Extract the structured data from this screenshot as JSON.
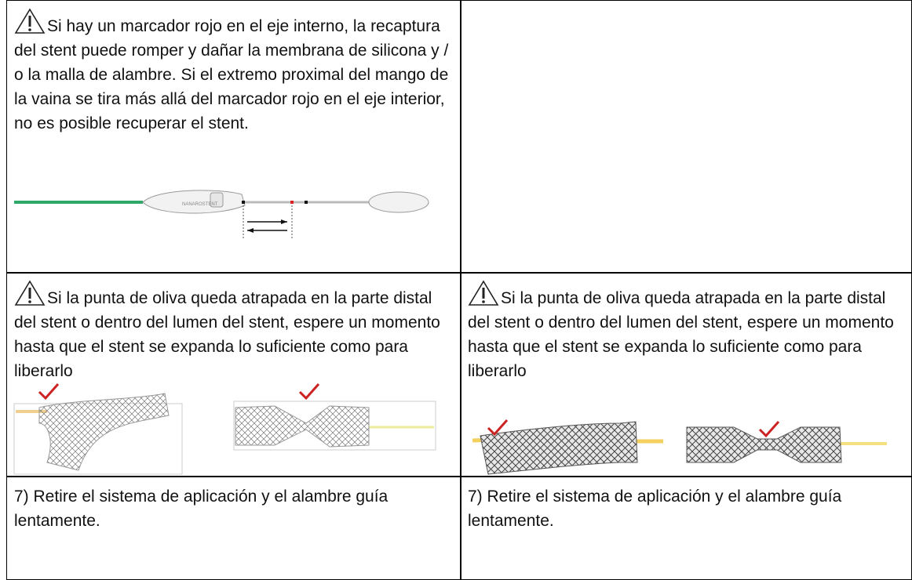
{
  "table": {
    "row1": {
      "left": "Si hay un marcador rojo en el eje interno, la recaptura del stent puede romper y dañar la membrana de silicona y / o la malla de alambre. Si el extremo proximal del mango de la vaina se tira más allá del marcador rojo en el eje interior, no es posible recuperar el stent.",
      "device_label": "NANAROSTENT"
    },
    "row2": {
      "left": "Si la punta de oliva queda atrapada en la parte distal del stent o dentro del lumen del stent, espere un momento hasta que el stent se expanda lo suficiente como para liberarlo",
      "right": "Si la punta de oliva queda atrapada en la parte distal del stent o dentro del lumen del stent, espere un momento hasta que el stent se expanda lo suficiente como para liberarlo"
    },
    "row3": {
      "left": "7) Retire el sistema de aplicación y el alambre guía lentamente.",
      "right": "7) Retire el sistema de aplicación y el alambre guía lentamente."
    }
  }
}
